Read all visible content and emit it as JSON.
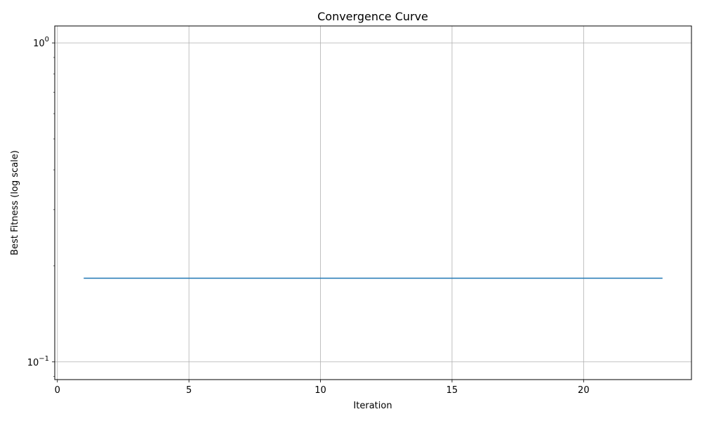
{
  "chart_data": {
    "type": "line",
    "title": "Convergence Curve",
    "xlabel": "Iteration",
    "ylabel": "Best Fitness (log scale)",
    "yscale": "log",
    "xlim": [
      -0.1,
      24.1
    ],
    "ylim": [
      0.088,
      1.13
    ],
    "x_ticks": [
      0,
      5,
      10,
      15,
      20
    ],
    "y_ticks": [
      {
        "value": 0.1,
        "base": "10",
        "exponent": "−1"
      },
      {
        "value": 1.0,
        "base": "10",
        "exponent": "0"
      }
    ],
    "grid": true,
    "series": [
      {
        "color": "#1f77b4",
        "x": [
          1,
          2,
          3,
          4,
          5,
          6,
          7,
          8,
          9,
          10,
          11,
          12,
          13,
          14,
          15,
          16,
          17,
          18,
          19,
          20,
          21,
          22,
          23
        ],
        "y": [
          0.183,
          0.183,
          0.183,
          0.183,
          0.183,
          0.183,
          0.183,
          0.183,
          0.183,
          0.183,
          0.183,
          0.183,
          0.183,
          0.183,
          0.183,
          0.183,
          0.183,
          0.183,
          0.183,
          0.183,
          0.183,
          0.183,
          0.183
        ]
      }
    ]
  }
}
